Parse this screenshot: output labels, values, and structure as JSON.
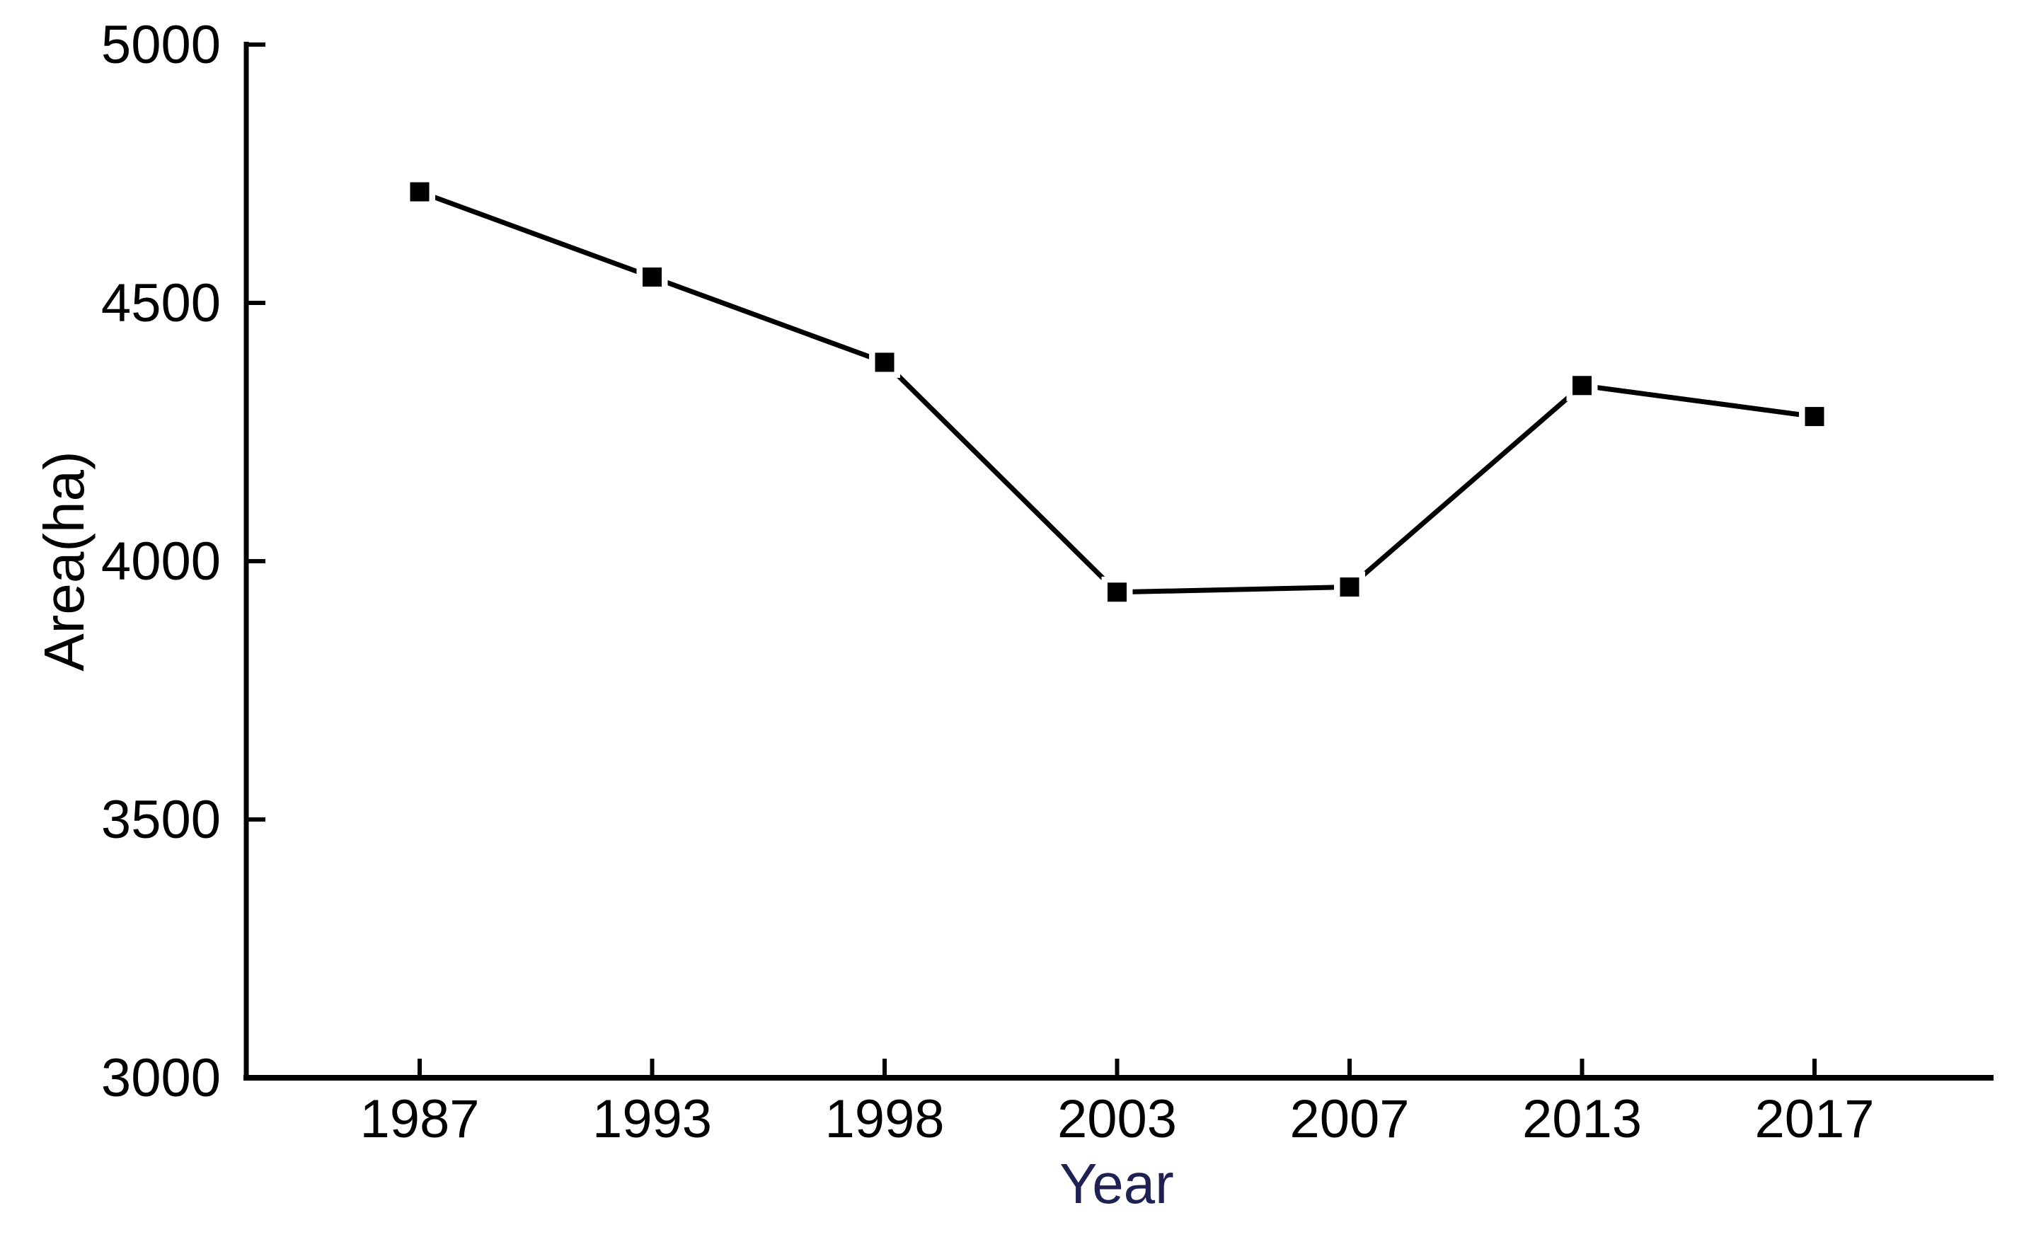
{
  "chart_data": {
    "type": "line",
    "title": "",
    "categories": [
      "1987",
      "1993",
      "1998",
      "2003",
      "2007",
      "2013",
      "2017"
    ],
    "series": [
      {
        "name": "Area",
        "values": [
          4715,
          4550,
          4385,
          3940,
          3950,
          4340,
          4280
        ],
        "color": "#000000",
        "marker": "filled-square",
        "marker_size": 27,
        "line_width": 7
      }
    ],
    "xlabel": "Year",
    "ylabel": "Area(ha)",
    "ylim": [
      3000,
      5000
    ],
    "yticks": [
      3000,
      3500,
      4000,
      4500,
      5000
    ],
    "grid": false,
    "legend": false,
    "axes_style": "open-left-bottom, inward ticks",
    "colors": {
      "axis": "#000000",
      "tick_label": "#000000",
      "ylabel_color": "#000000",
      "xlabel_color": "#1f2152",
      "background": "#ffffff"
    }
  }
}
